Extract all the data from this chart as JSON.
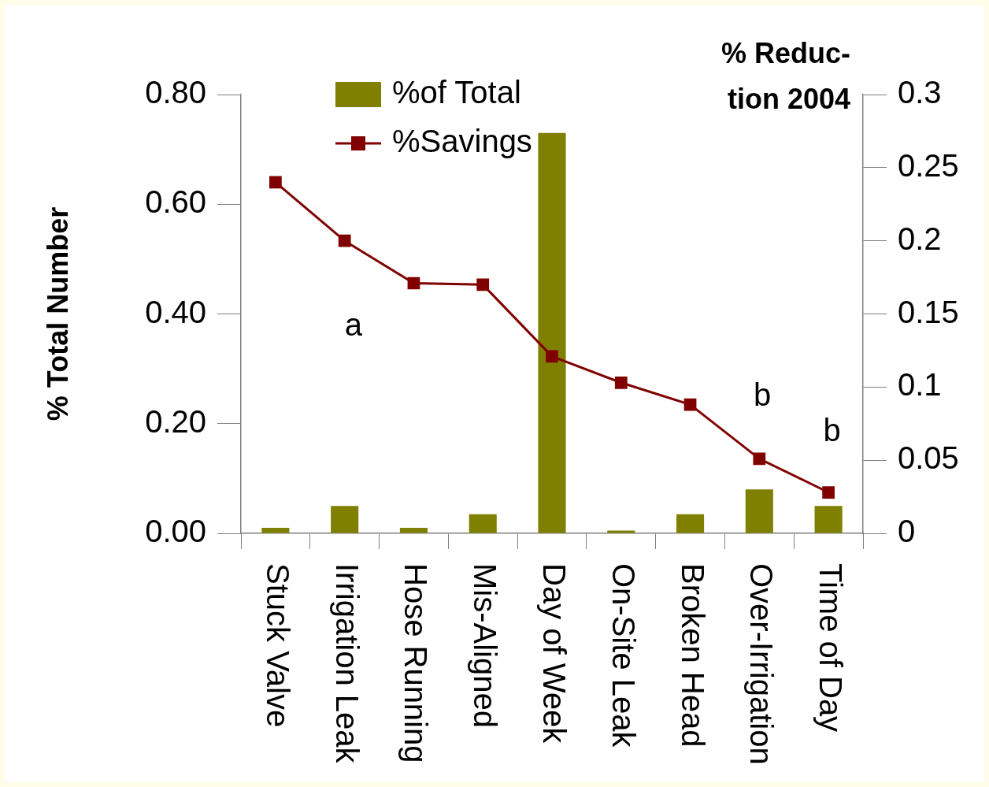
{
  "chart_data": {
    "type": "bar",
    "ylabel": "% Total Number",
    "y2label": "% Reduc-\ntion 2004",
    "categories": [
      "Stuck Valve",
      "Irrigation Leak",
      "Hose Running",
      "Mis-Aligned",
      "Day of Week",
      "On-Site Leak",
      "Broken Head",
      "Over-Irrigation",
      "Time of Day"
    ],
    "series": [
      {
        "name": "%of Total",
        "color": "#808000",
        "values": [
          0.01,
          0.05,
          0.01,
          0.035,
          0.73,
          0.005,
          0.035,
          0.08,
          0.05
        ]
      },
      {
        "name": "%Savings",
        "type": "line",
        "axis": "y2",
        "color": "#800000",
        "marker": "square",
        "values": [
          0.24,
          0.2,
          0.171,
          0.17,
          0.121,
          0.103,
          0.088,
          0.051,
          0.028
        ]
      }
    ],
    "ylim": [
      0,
      0.8
    ],
    "yticks": [
      {
        "value": 0,
        "label": "0.00"
      },
      {
        "value": 0.2,
        "label": "0.20"
      },
      {
        "value": 0.4,
        "label": "0.40"
      },
      {
        "value": 0.6,
        "label": "0.60"
      },
      {
        "value": 0.8,
        "label": "0.80"
      }
    ],
    "y2lim": [
      0,
      0.3
    ],
    "y2ticks": [
      0,
      0.05,
      0.1,
      0.15,
      0.2,
      0.25,
      0.3
    ],
    "annotations": [
      "a",
      "b",
      "b"
    ],
    "legend": "top",
    "grid": false
  }
}
